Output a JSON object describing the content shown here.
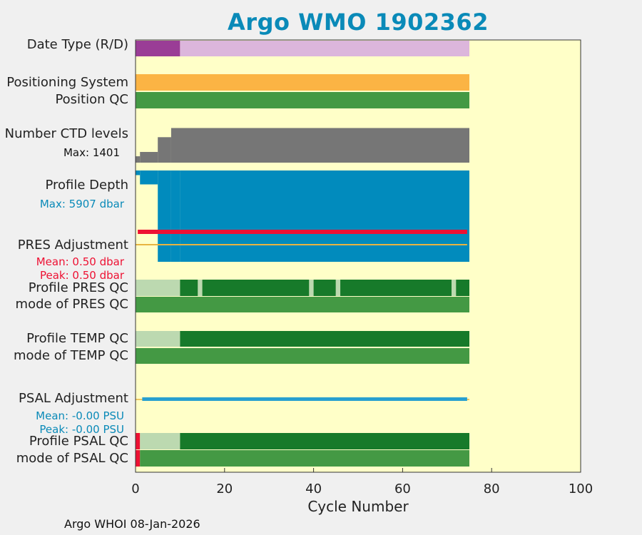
{
  "chart_data": {
    "type": "status-timeline",
    "title": "Argo WMO 1902362",
    "xlabel": "Cycle Number",
    "xlim": [
      0,
      100
    ],
    "xticks": [
      0,
      20,
      40,
      60,
      80,
      100
    ],
    "n_cycles": 75,
    "rows": {
      "date_type": {
        "label": "Date Type (R/D)",
        "segments": [
          {
            "from": 0,
            "to": 10,
            "state": "R"
          },
          {
            "from": 10,
            "to": 75,
            "state": "D"
          }
        ]
      },
      "positioning_system": {
        "label": "Positioning System",
        "segments": [
          {
            "from": 0,
            "to": 75,
            "state": "GPS"
          }
        ]
      },
      "position_qc": {
        "label": "Position QC",
        "segments": [
          {
            "from": 0,
            "to": 75,
            "state": "1"
          }
        ]
      },
      "ctd_levels": {
        "label": "Number CTD levels",
        "max_text": "Max: 1401",
        "max": 1401,
        "steps": [
          {
            "from": 0,
            "to": 1,
            "value": 250
          },
          {
            "from": 1,
            "to": 5,
            "value": 420
          },
          {
            "from": 5,
            "to": 8,
            "value": 1000
          },
          {
            "from": 8,
            "to": 75,
            "value": 1360
          }
        ]
      },
      "profile_depth": {
        "label": "Profile Depth",
        "max_text": "Max: 5907 dbar",
        "max_dbar": 5907,
        "steps": [
          {
            "from": 0,
            "to": 1,
            "value": 300
          },
          {
            "from": 1,
            "to": 5,
            "value": 900
          },
          {
            "from": 5,
            "to": 8,
            "value": 5907
          },
          {
            "from": 8,
            "to": 10,
            "value": 5907
          },
          {
            "from": 10,
            "to": 75,
            "value": 5907
          }
        ]
      },
      "pres_adjustment": {
        "label": "PRES Adjustment",
        "mean_text": "Mean: 0.50 dbar",
        "peak_text": "Peak: 0.50 dbar",
        "mean": 0.5,
        "peak": 0.5
      },
      "profile_pres_qc": {
        "label": "Profile PRES QC",
        "segments": [
          {
            "from": 0,
            "to": 10,
            "state": "A-"
          },
          {
            "from": 10,
            "to": 14,
            "state": "A"
          },
          {
            "from": 14,
            "to": 15,
            "state": "A-"
          },
          {
            "from": 15,
            "to": 39,
            "state": "A"
          },
          {
            "from": 39,
            "to": 40,
            "state": "A-"
          },
          {
            "from": 40,
            "to": 45,
            "state": "A"
          },
          {
            "from": 45,
            "to": 46,
            "state": "A-"
          },
          {
            "from": 46,
            "to": 71,
            "state": "A"
          },
          {
            "from": 71,
            "to": 72,
            "state": "A-"
          },
          {
            "from": 72,
            "to": 75,
            "state": "A"
          }
        ]
      },
      "mode_pres_qc": {
        "label": "mode of PRES QC",
        "segments": [
          {
            "from": 0,
            "to": 75,
            "state": "1"
          }
        ]
      },
      "profile_temp_qc": {
        "label": "Profile TEMP QC",
        "segments": [
          {
            "from": 0,
            "to": 10,
            "state": "A-"
          },
          {
            "from": 10,
            "to": 75,
            "state": "A"
          }
        ]
      },
      "mode_temp_qc": {
        "label": "mode of TEMP QC",
        "segments": [
          {
            "from": 0,
            "to": 75,
            "state": "1"
          }
        ]
      },
      "psal_adjustment": {
        "label": "PSAL Adjustment",
        "mean_text": "Mean: -0.00 PSU",
        "peak_text": "Peak: -0.00 PSU",
        "mean": -0.0,
        "peak": -0.0
      },
      "profile_psal_qc": {
        "label": "Profile PSAL QC",
        "segments": [
          {
            "from": 0,
            "to": 1,
            "state": "F"
          },
          {
            "from": 1,
            "to": 10,
            "state": "A-"
          },
          {
            "from": 10,
            "to": 75,
            "state": "A"
          }
        ]
      },
      "mode_psal_qc": {
        "label": "mode of PSAL QC",
        "segments": [
          {
            "from": 0,
            "to": 1,
            "state": "4"
          },
          {
            "from": 1,
            "to": 75,
            "state": "1"
          }
        ]
      }
    },
    "colors": {
      "background": "#ffffc8",
      "R": "#9a3d96",
      "D": "#dcb6dc",
      "GPS": "#fbb444",
      "1": "#449944",
      "4": "#ee1133",
      "A": "#177a2a",
      "A-": "#bcd9b0",
      "F": "#ee1133",
      "levels": "#767676",
      "depth": "#018bbd",
      "pres_line": "#ee1133",
      "pres_zero": "#e8b440",
      "psal_line": "#28a0d0",
      "title": "#0a8ab8"
    }
  },
  "footer": "Argo WHOI 08-Jan-2026"
}
